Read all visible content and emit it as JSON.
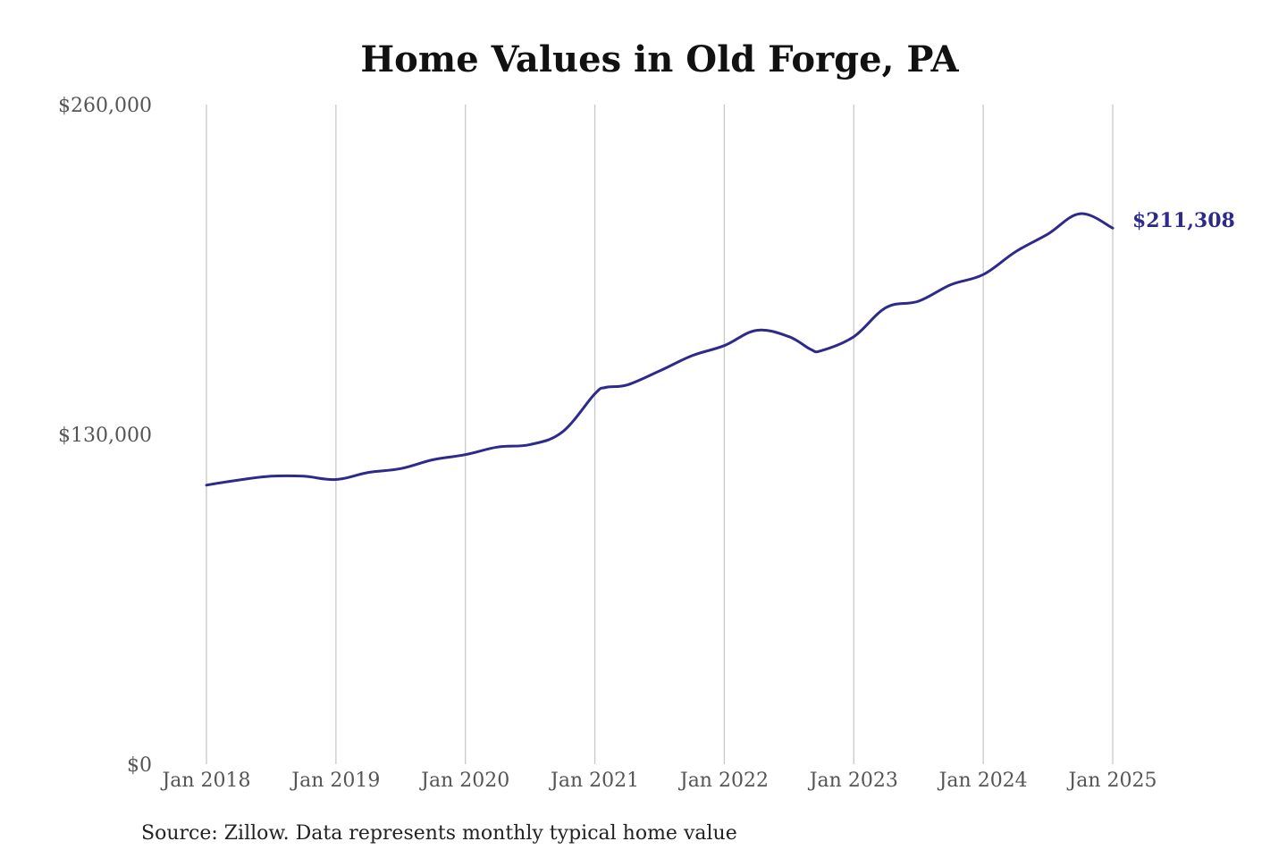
{
  "chart_data": {
    "type": "line",
    "title": "Home Values in Old Forge, PA",
    "xlabel": "",
    "ylabel": "",
    "ylim": [
      0,
      260000
    ],
    "y_ticks": [
      {
        "value": 0,
        "label": "$0"
      },
      {
        "value": 130000,
        "label": "$130,000"
      },
      {
        "value": 260000,
        "label": "$260,000"
      }
    ],
    "x_range": [
      "2018-01",
      "2025-01"
    ],
    "x_ticks": [
      {
        "date": "2018-01",
        "label": "Jan 2018"
      },
      {
        "date": "2019-01",
        "label": "Jan 2019"
      },
      {
        "date": "2020-01",
        "label": "Jan 2020"
      },
      {
        "date": "2021-01",
        "label": "Jan 2021"
      },
      {
        "date": "2022-01",
        "label": "Jan 2022"
      },
      {
        "date": "2023-01",
        "label": "Jan 2023"
      },
      {
        "date": "2024-01",
        "label": "Jan 2024"
      },
      {
        "date": "2025-01",
        "label": "Jan 2025"
      }
    ],
    "grid": {
      "vertical": true,
      "horizontal": false
    },
    "series": [
      {
        "color": "#2e2a8c",
        "points": [
          {
            "x": "2018-01",
            "y": 110000
          },
          {
            "x": "2018-04",
            "y": 112000
          },
          {
            "x": "2018-07",
            "y": 113500
          },
          {
            "x": "2018-10",
            "y": 113500
          },
          {
            "x": "2019-01",
            "y": 112200
          },
          {
            "x": "2019-04",
            "y": 115000
          },
          {
            "x": "2019-07",
            "y": 116500
          },
          {
            "x": "2019-10",
            "y": 120000
          },
          {
            "x": "2020-01",
            "y": 122000
          },
          {
            "x": "2020-04",
            "y": 125000
          },
          {
            "x": "2020-07",
            "y": 126000
          },
          {
            "x": "2020-10",
            "y": 131000
          },
          {
            "x": "2021-01",
            "y": 146000
          },
          {
            "x": "2021-02",
            "y": 148500
          },
          {
            "x": "2021-04",
            "y": 149500
          },
          {
            "x": "2021-07",
            "y": 155000
          },
          {
            "x": "2021-10",
            "y": 161000
          },
          {
            "x": "2022-01",
            "y": 165000
          },
          {
            "x": "2022-04",
            "y": 171000
          },
          {
            "x": "2022-07",
            "y": 168500
          },
          {
            "x": "2022-09",
            "y": 163500
          },
          {
            "x": "2022-10",
            "y": 163000
          },
          {
            "x": "2023-01",
            "y": 168500
          },
          {
            "x": "2023-04",
            "y": 180000
          },
          {
            "x": "2023-07",
            "y": 182500
          },
          {
            "x": "2023-10",
            "y": 189000
          },
          {
            "x": "2024-01",
            "y": 193000
          },
          {
            "x": "2024-04",
            "y": 202000
          },
          {
            "x": "2024-07",
            "y": 209000
          },
          {
            "x": "2024-10",
            "y": 217000
          },
          {
            "x": "2025-01",
            "y": 211308
          }
        ],
        "end_label": "$211,308"
      }
    ],
    "source_note": "Source: Zillow. Data represents monthly typical home value"
  }
}
